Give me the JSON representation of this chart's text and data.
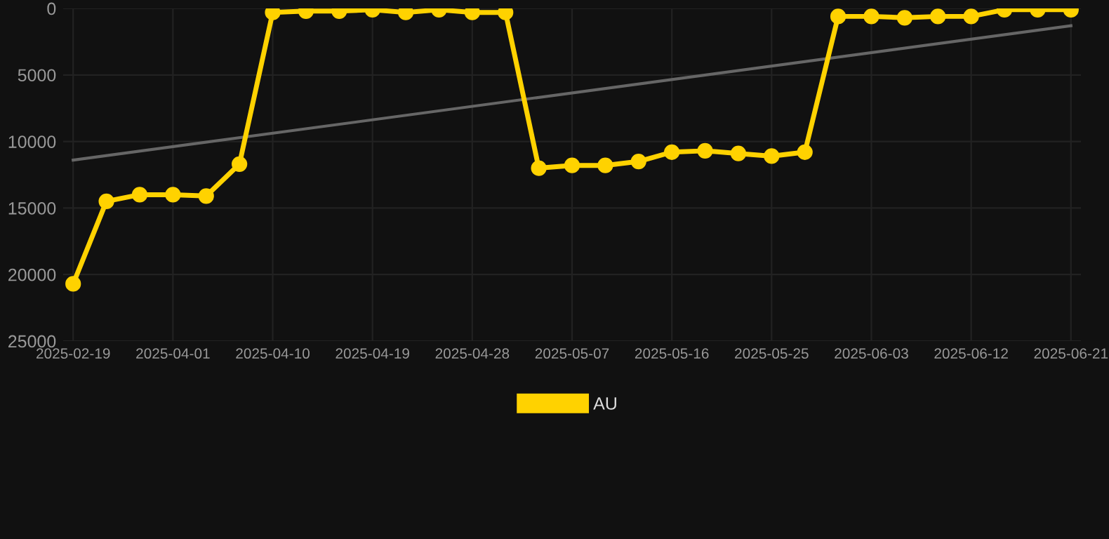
{
  "chart_data": {
    "type": "line",
    "categories": [
      "2025-02-19",
      null,
      null,
      "2025-04-01",
      null,
      null,
      "2025-04-10",
      null,
      null,
      "2025-04-19",
      null,
      null,
      "2025-04-28",
      null,
      null,
      "2025-05-07",
      null,
      null,
      "2025-05-16",
      null,
      null,
      "2025-05-25",
      null,
      null,
      "2025-06-03",
      null,
      null,
      "2025-06-12",
      null,
      null,
      "2025-06-21"
    ],
    "series": [
      {
        "name": "AU",
        "color": "#ffd200",
        "marker": "circle",
        "values": [
          20700,
          14500,
          14000,
          14000,
          14100,
          11700,
          300,
          200,
          200,
          100,
          300,
          100,
          300,
          300,
          12000,
          11800,
          11800,
          11500,
          10800,
          10700,
          10900,
          11100,
          10800,
          600,
          600,
          700,
          600,
          600,
          100,
          100,
          100
        ]
      },
      {
        "type": "line",
        "color": "#666666",
        "marker": "none",
        "values": [
          11400,
          null,
          null,
          null,
          null,
          null,
          null,
          null,
          null,
          null,
          null,
          null,
          null,
          null,
          null,
          null,
          null,
          null,
          null,
          null,
          null,
          null,
          null,
          null,
          null,
          null,
          null,
          null,
          null,
          null,
          1300
        ]
      }
    ],
    "ylim": [
      25000,
      0
    ],
    "yticks": [
      0,
      5000,
      10000,
      15000,
      20000,
      25000
    ],
    "grid": true,
    "legend": "bottom",
    "line_style": "solid"
  }
}
